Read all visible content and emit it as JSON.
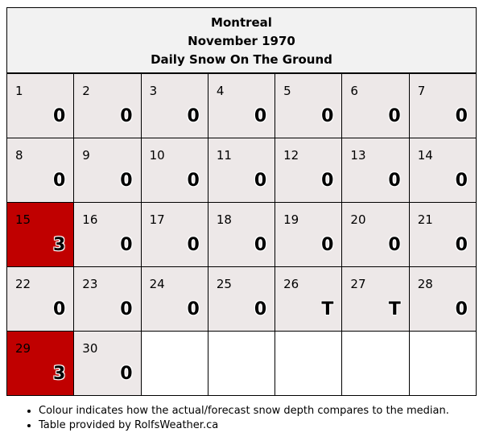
{
  "header": {
    "city": "Montreal",
    "month": "November 1970",
    "subtitle": "Daily Snow On The Ground"
  },
  "colors": {
    "normal_cell": "#ede8e8",
    "above_median": "#c00000",
    "empty_cell": "#ffffff"
  },
  "calendar": {
    "days": [
      {
        "day": "1",
        "value": "0",
        "status": "normal"
      },
      {
        "day": "2",
        "value": "0",
        "status": "normal"
      },
      {
        "day": "3",
        "value": "0",
        "status": "normal"
      },
      {
        "day": "4",
        "value": "0",
        "status": "normal"
      },
      {
        "day": "5",
        "value": "0",
        "status": "normal"
      },
      {
        "day": "6",
        "value": "0",
        "status": "normal"
      },
      {
        "day": "7",
        "value": "0",
        "status": "normal"
      },
      {
        "day": "8",
        "value": "0",
        "status": "normal"
      },
      {
        "day": "9",
        "value": "0",
        "status": "normal"
      },
      {
        "day": "10",
        "value": "0",
        "status": "normal"
      },
      {
        "day": "11",
        "value": "0",
        "status": "normal"
      },
      {
        "day": "12",
        "value": "0",
        "status": "normal"
      },
      {
        "day": "13",
        "value": "0",
        "status": "normal"
      },
      {
        "day": "14",
        "value": "0",
        "status": "normal"
      },
      {
        "day": "15",
        "value": "3",
        "status": "above"
      },
      {
        "day": "16",
        "value": "0",
        "status": "normal"
      },
      {
        "day": "17",
        "value": "0",
        "status": "normal"
      },
      {
        "day": "18",
        "value": "0",
        "status": "normal"
      },
      {
        "day": "19",
        "value": "0",
        "status": "normal"
      },
      {
        "day": "20",
        "value": "0",
        "status": "normal"
      },
      {
        "day": "21",
        "value": "0",
        "status": "normal"
      },
      {
        "day": "22",
        "value": "0",
        "status": "normal"
      },
      {
        "day": "23",
        "value": "0",
        "status": "normal"
      },
      {
        "day": "24",
        "value": "0",
        "status": "normal"
      },
      {
        "day": "25",
        "value": "0",
        "status": "normal"
      },
      {
        "day": "26",
        "value": "T",
        "status": "normal"
      },
      {
        "day": "27",
        "value": "T",
        "status": "normal"
      },
      {
        "day": "28",
        "value": "0",
        "status": "normal"
      },
      {
        "day": "29",
        "value": "3",
        "status": "above"
      },
      {
        "day": "30",
        "value": "0",
        "status": "normal"
      }
    ],
    "trailing_empty_cells": 5
  },
  "notes": [
    "Colour indicates how the actual/forecast snow depth compares to the median.",
    "Table provided by RolfsWeather.ca"
  ]
}
